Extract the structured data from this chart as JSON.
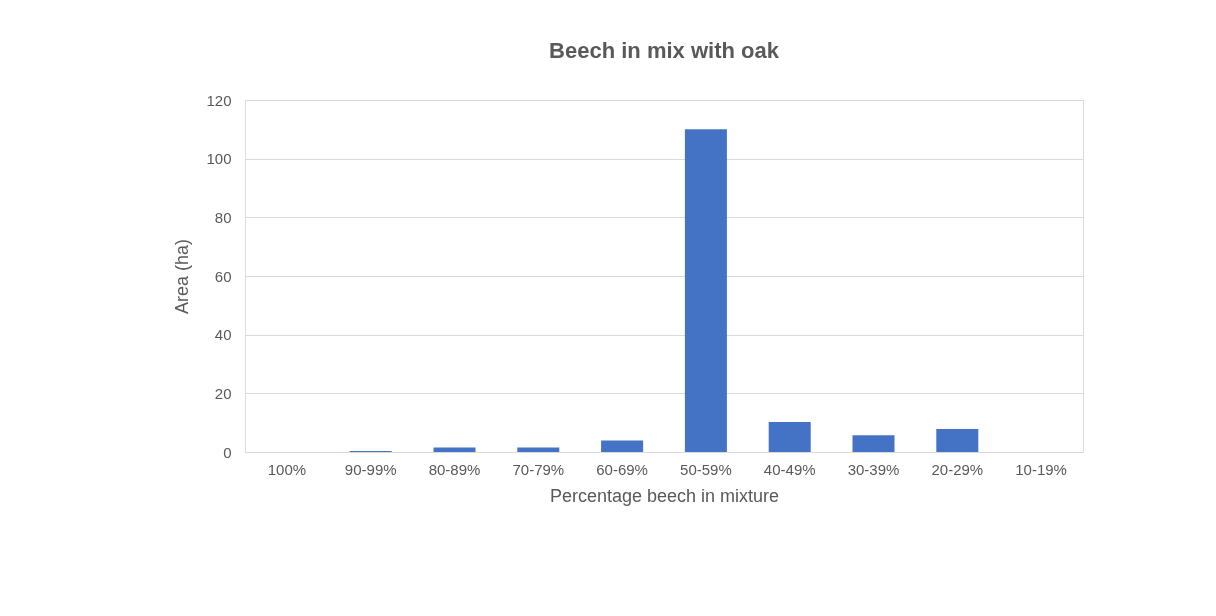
{
  "chart_data": {
    "type": "bar",
    "title": "Beech in mix with oak",
    "xlabel": "Percentage beech in mixture",
    "ylabel": "Area (ha)",
    "categories": [
      "100%",
      "90-99%",
      "80-89%",
      "70-79%",
      "60-69%",
      "50-59%",
      "40-49%",
      "30-39%",
      "20-29%",
      "10-19%"
    ],
    "values": [
      0,
      0.3,
      1.5,
      1.5,
      3.9,
      110,
      10.2,
      5.7,
      7.8,
      0
    ],
    "color": "#4472c4",
    "ylim": [
      0,
      120
    ],
    "yticks": [
      0,
      20,
      40,
      60,
      80,
      100,
      120
    ],
    "grid": "y"
  }
}
